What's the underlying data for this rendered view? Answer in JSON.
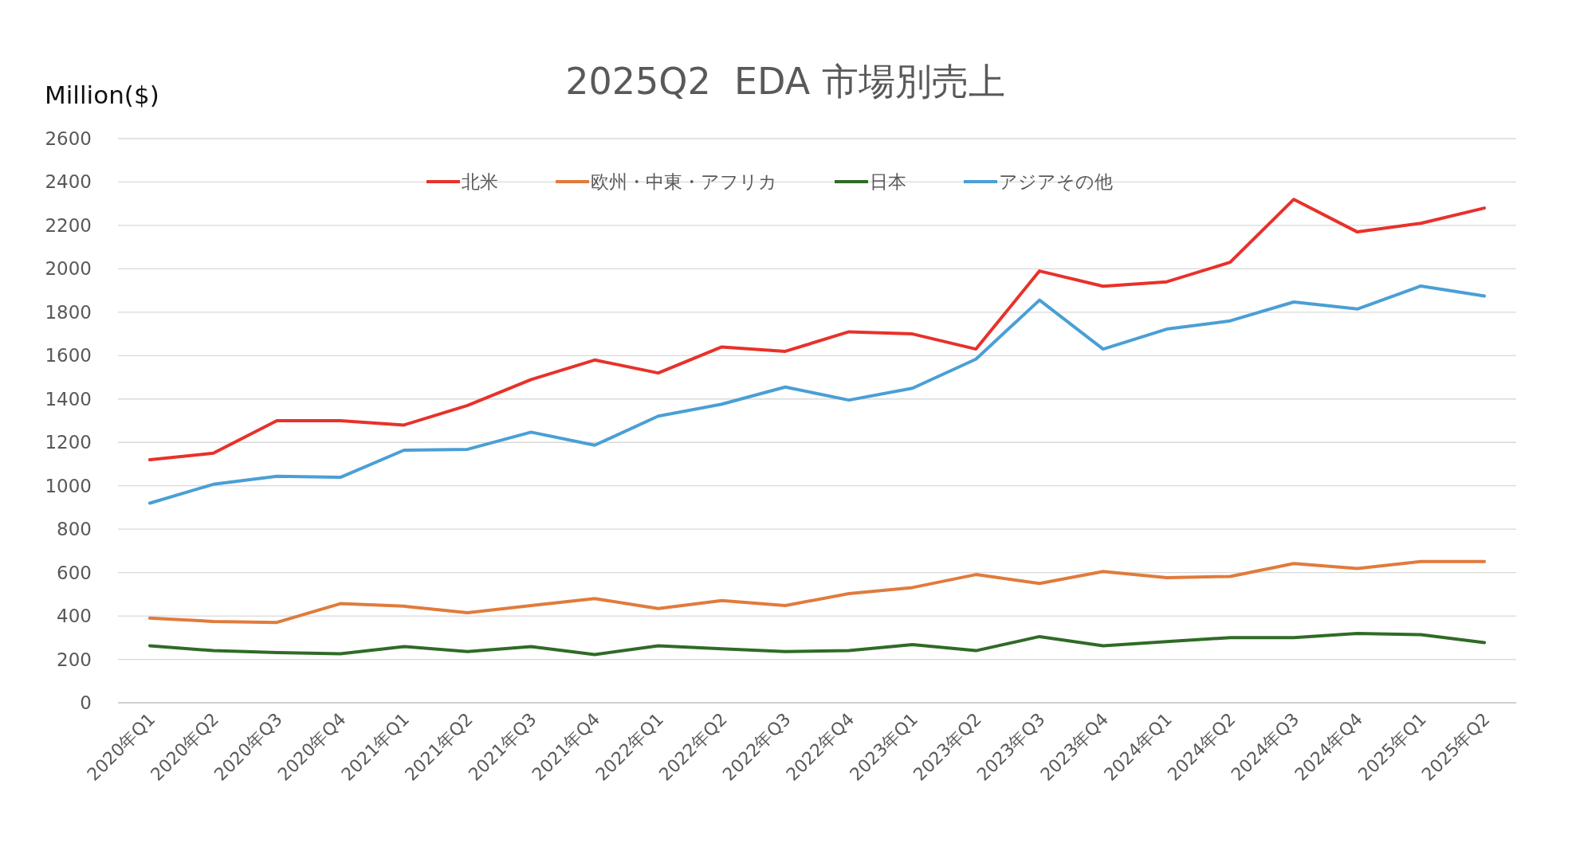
{
  "chart_data": {
    "type": "line",
    "title": "2025Q2  EDA 市場別売上",
    "ylabel": "Million($)",
    "categories": [
      "2020年Q1",
      "2020年Q2",
      "2020年Q3",
      "2020年Q4",
      "2021年Q1",
      "2021年Q2",
      "2021年Q3",
      "2021年Q4",
      "2022年Q1",
      "2022年Q2",
      "2022年Q3",
      "2022年Q4",
      "2023年Q1",
      "2023年Q2",
      "2023年Q3",
      "2023年Q4",
      "2024年Q1",
      "2024年Q2",
      "2024年Q3",
      "2024年Q4",
      "2025年Q1",
      "2025年Q2"
    ],
    "series": [
      {
        "name": "北米",
        "color": "#e8312a",
        "values": [
          1120,
          1150,
          1300,
          1300,
          1280,
          1370,
          1490,
          1580,
          1520,
          1640,
          1620,
          1710,
          1700,
          1630,
          1990,
          1920,
          1940,
          2030,
          2320,
          2170,
          2210,
          2280
        ]
      },
      {
        "name": "欧州・中東・アフリカ",
        "color": "#e07b3c",
        "values": [
          390,
          375,
          370,
          457,
          445,
          415,
          448,
          480,
          434,
          471,
          448,
          503,
          531,
          591,
          550,
          605,
          577,
          582,
          642,
          619,
          651,
          651
        ]
      },
      {
        "name": "日本",
        "color": "#2f6b26",
        "values": [
          263,
          240,
          231,
          226,
          259,
          236,
          259,
          222,
          263,
          249,
          236,
          240,
          268,
          240,
          305,
          263,
          282,
          300,
          300,
          319,
          314,
          277
        ]
      },
      {
        "name": "アジアその他",
        "color": "#4a9fd5",
        "values": [
          920,
          1007,
          1044,
          1039,
          1164,
          1168,
          1247,
          1187,
          1321,
          1376,
          1455,
          1395,
          1450,
          1584,
          1856,
          1630,
          1722,
          1760,
          1847,
          1815,
          1921,
          1875
        ]
      }
    ],
    "ylim": [
      0,
      2600
    ],
    "yticks": [
      0,
      200,
      400,
      600,
      800,
      1000,
      1200,
      1400,
      1600,
      1800,
      2000,
      2200,
      2400,
      2600
    ],
    "grid": "y",
    "legend": "top"
  }
}
